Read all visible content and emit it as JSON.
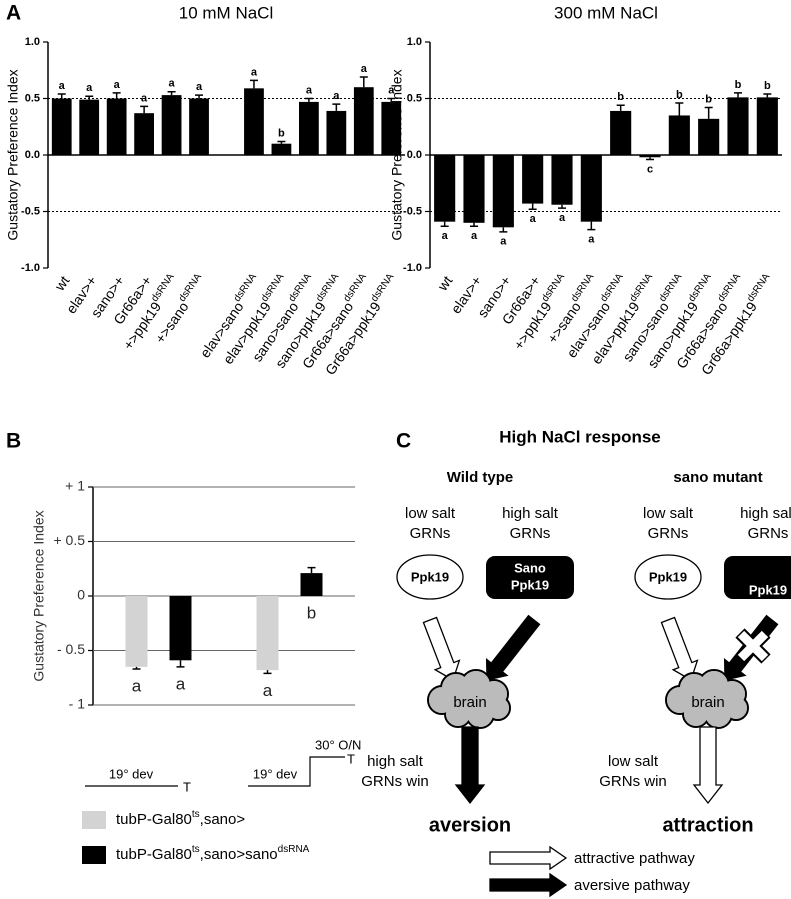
{
  "panel_labels": [
    "A",
    "B",
    "C"
  ],
  "chart_data": [
    {
      "type": "bar",
      "title": "10 mM NaCl",
      "y_label": "Gustatory Preference Index",
      "categories": [
        "wt",
        "elav>+",
        "sano>+",
        "Gr66a>+",
        "+>ppk19",
        "+>sano",
        null,
        "elav>sano",
        "elav>ppk19",
        "sano>sano",
        "sano>ppk19",
        "Gr66a>sano",
        "Gr66a>ppk19"
      ],
      "category_superscripts": [
        null,
        null,
        null,
        null,
        "dsRNA",
        "dsRNA",
        null,
        "dsRNA",
        "dsRNA",
        "dsRNA",
        "dsRNA",
        "dsRNA",
        "dsRNA"
      ],
      "values": [
        0.5,
        0.49,
        0.5,
        0.37,
        0.53,
        0.5,
        null,
        0.59,
        0.1,
        0.47,
        0.39,
        0.6,
        0.47
      ],
      "errors": [
        0.04,
        0.03,
        0.05,
        0.06,
        0.03,
        0.03,
        null,
        0.07,
        0.02,
        0.03,
        0.06,
        0.09,
        0.03
      ],
      "letters": [
        "a",
        "a",
        "a",
        "a",
        "a",
        "a",
        null,
        "a",
        "b",
        "a",
        "a",
        "a",
        "a"
      ],
      "color": "#000000",
      "ylim": [
        -1,
        1
      ],
      "yticks": [
        {
          "value": -1,
          "label": "-1.0"
        },
        {
          "value": -0.5,
          "label": "-0.5"
        },
        {
          "value": 0,
          "label": "0.0"
        },
        {
          "value": 0.5,
          "label": "0.5"
        },
        {
          "value": 1,
          "label": "1.0"
        }
      ],
      "reference_lines": [
        0.5,
        -0.5
      ]
    },
    {
      "type": "bar",
      "title": "300 mM NaCl",
      "y_label": "Gustatory Preference Index",
      "categories": [
        "wt",
        "elav>+",
        "sano>+",
        "Gr66a>+",
        "+>ppk19",
        "+>sano",
        "elav>sano",
        "elav>ppk19",
        "sano>sano",
        "sano>ppk19",
        "Gr66a>sano",
        "Gr66a>ppk19"
      ],
      "category_superscripts": [
        null,
        null,
        null,
        null,
        "dsRNA",
        "dsRNA",
        "dsRNA",
        "dsRNA",
        "dsRNA",
        "dsRNA",
        "dsRNA",
        "dsRNA"
      ],
      "values": [
        -0.59,
        -0.6,
        -0.64,
        -0.43,
        -0.44,
        -0.59,
        0.39,
        -0.02,
        0.35,
        0.32,
        0.51,
        0.51
      ],
      "errors": [
        0.04,
        0.03,
        0.04,
        0.05,
        0.03,
        0.07,
        0.05,
        0.02,
        0.11,
        0.1,
        0.04,
        0.03
      ],
      "letters": [
        "a",
        "a",
        "a",
        "a",
        "a",
        "a",
        "b",
        "c",
        "b",
        "b",
        "b",
        "b"
      ],
      "color": "#000000",
      "ylim": [
        -1,
        1
      ],
      "yticks": [
        {
          "value": -1,
          "label": "-1.0"
        },
        {
          "value": -0.5,
          "label": "-0.5"
        },
        {
          "value": 0,
          "label": "0.0"
        },
        {
          "value": 0.5,
          "label": "0.5"
        },
        {
          "value": 1,
          "label": "1.0"
        }
      ],
      "reference_lines": [
        0.5,
        -0.5
      ]
    },
    {
      "type": "grouped_bar",
      "y_label": "Gustatory Preference Index",
      "series": [
        {
          "name_parts": [
            "tubP-Gal80",
            "ts",
            ",sano>"
          ],
          "color": "#d3d3d3",
          "values": [
            -0.65,
            -0.68
          ],
          "errors": [
            0.02,
            0.03
          ],
          "letters": [
            "a",
            "a"
          ]
        },
        {
          "name_parts": [
            "tubP-Gal80",
            "ts",
            ",sano>sano",
            "dsRNA"
          ],
          "color": "#000000",
          "values": [
            -0.59,
            0.21
          ],
          "errors": [
            0.06,
            0.05
          ],
          "letters": [
            "a",
            "b"
          ]
        }
      ],
      "ylim": [
        -1,
        1
      ],
      "yticks": [
        {
          "value": -1,
          "label": "- 1"
        },
        {
          "value": -0.5,
          "label": "- 0.5"
        },
        0,
        {
          "value": 0.5,
          "label": "+ 0.5"
        },
        {
          "value": 1,
          "label": "+ 1"
        }
      ],
      "grid": true,
      "conditions": [
        [
          "19° dev",
          "T"
        ],
        [
          "19° dev",
          "30° O/N",
          "T"
        ]
      ]
    }
  ],
  "diagram": {
    "title": "High NaCl response",
    "wild_type": {
      "heading": "Wild type",
      "low_cells": [
        "low salt",
        "GRNs"
      ],
      "high_cells": [
        "high salt",
        "GRNs"
      ],
      "low_channel": "Ppk19",
      "high_channel": [
        "Sano",
        "Ppk19"
      ],
      "brain": "brain",
      "winner": [
        "high salt",
        "GRNs win"
      ],
      "outcome": "aversion"
    },
    "mutant": {
      "heading": "sano mutant",
      "low_cells": [
        "low salt",
        "GRNs"
      ],
      "high_cells": [
        "high salt",
        "GRNs"
      ],
      "low_channel": "Ppk19",
      "high_channel": "Ppk19",
      "brain": "brain",
      "winner": [
        "low salt",
        "GRNs win"
      ],
      "outcome": "attraction"
    },
    "legend": [
      "attractive pathway",
      "aversive pathway"
    ]
  }
}
